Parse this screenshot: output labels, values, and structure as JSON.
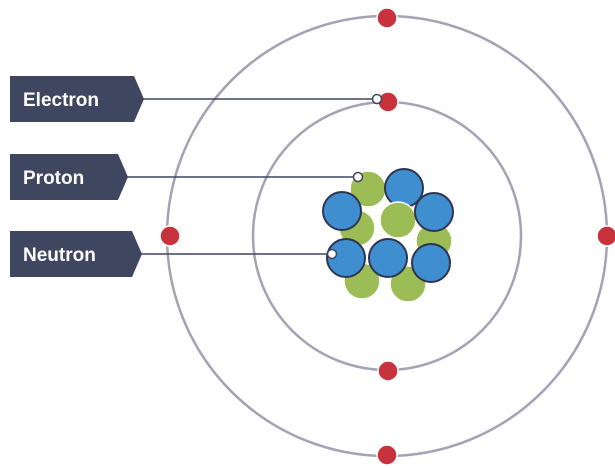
{
  "labels": {
    "electron": "Electron",
    "proton": "Proton",
    "neutron": "Neutron"
  },
  "colors": {
    "label_bg": "#3f4660",
    "label_text": "#ffffff",
    "orbit": "#a6a1b3",
    "leader_line": "#3f4660",
    "electron": "#c8323c",
    "proton": "#3f8fd0",
    "neutron": "#9cbd55",
    "particle_outline": "#2f3550",
    "background": "#ffffff"
  }
}
